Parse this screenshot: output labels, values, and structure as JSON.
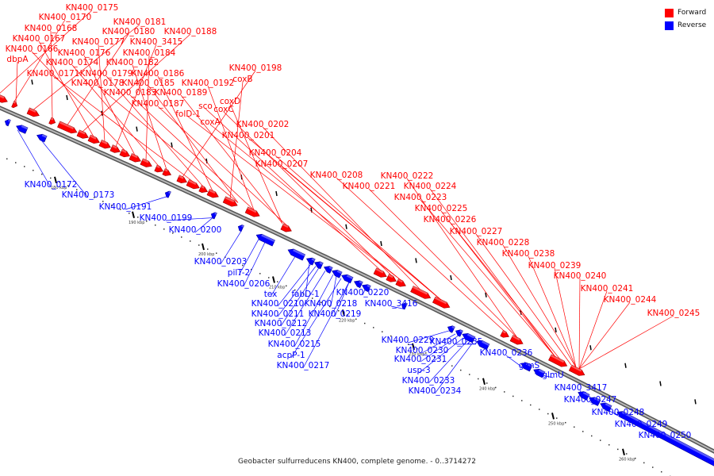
{
  "legend": {
    "forward_label": "Forward",
    "reverse_label": "Reverse",
    "forward_color": "#ff0000",
    "reverse_color": "#0000ff"
  },
  "caption": "Geobacter sulfurreducens KN400, complete genome. - 0..3714272",
  "scale_ticks": [
    "180 kbp",
    "190 kbp",
    "200 kbp",
    "210 kbp",
    "220 kbp",
    "230 kbp",
    "240 kbp",
    "250 kbp",
    "260 kbp",
    "270 kbp"
  ],
  "forward_genes": [
    "KN400_0175",
    "KN400_0170",
    "KN400_0181",
    "KN400_0168",
    "KN400_0180",
    "KN400_0188",
    "KN400_0167",
    "KN400_0177",
    "KN400_3415",
    "KN400_0166",
    "KN400_0176",
    "KN400_0184",
    "dbpA",
    "KN400_0174",
    "KN400_0182",
    "KN400_0198",
    "KN400_0171",
    "KN400_0179",
    "KN400_0186",
    "coxB",
    "KN400_0178",
    "KN400_0185",
    "KN400_0192",
    "KN400_0183",
    "KN400_0189",
    "coxD",
    "KN400_0187",
    "sco",
    "coxC",
    "folD-1",
    "coxA",
    "KN400_0202",
    "KN400_0201",
    "KN400_0204",
    "KN400_0207",
    "KN400_0208",
    "KN400_0222",
    "KN400_0221",
    "KN400_0224",
    "KN400_0223",
    "KN400_0225",
    "KN400_0226",
    "KN400_0227",
    "KN400_0228",
    "KN400_0238",
    "KN400_0239",
    "KN400_0240",
    "KN400_0241",
    "KN400_0244",
    "KN400_0245"
  ],
  "reverse_genes": [
    "KN400_0172",
    "KN400_0173",
    "KN400_0191",
    "KN400_0199",
    "KN400_0200",
    "KN400_0203",
    "pilT-2",
    "KN400_0206",
    "tex",
    "fabD-1",
    "KN400_0220",
    "KN400_0210",
    "KN400_0218",
    "KN400_3416",
    "KN400_0211",
    "KN400_0219",
    "KN400_0212",
    "KN400_0213",
    "KN400_0215",
    "acpP-1",
    "KN400_0217",
    "KN400_0229",
    "KN400_0230",
    "KN400_0235",
    "KN400_0231",
    "KN400_0236",
    "usp-3",
    "glmS",
    "KN400_0233",
    "glmU",
    "KN400_0234",
    "KN400_3417",
    "KN400_0247",
    "KN400_0248",
    "KN400_0249",
    "KN400_0250"
  ]
}
